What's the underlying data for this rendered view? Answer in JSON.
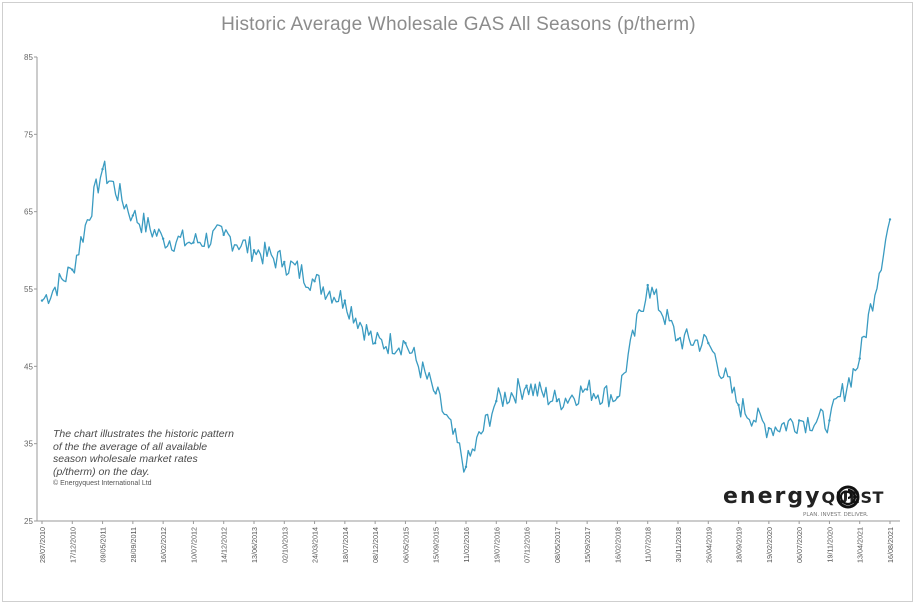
{
  "chart_data": {
    "type": "line",
    "title": "Historic Average Wholesale GAS All Seasons (p/therm)",
    "xlabel": "",
    "ylabel": "",
    "ylim": [
      25,
      85
    ],
    "y_ticks": [
      "85",
      "75",
      "65",
      "55",
      "45",
      "35",
      "25"
    ],
    "x_tick_labels": [
      "28/07/2010",
      "17/12/2010",
      "09/05/2011",
      "28/09/2011",
      "16/02/2012",
      "10/07/2012",
      "14/12/2012",
      "13/06/2013",
      "02/10/2013",
      "24/03/2014",
      "18/07/2014",
      "08/12/2014",
      "06/05/2015",
      "15/09/2015",
      "11/02/2016",
      "19/07/2016",
      "07/12/2016",
      "08/05/2017",
      "15/09/2017",
      "16/02/2018",
      "11/07/2018",
      "30/11/2018",
      "26/04/2019",
      "18/09/2019",
      "19/02/2020",
      "06/07/2020",
      "19/11/2020",
      "13/04/2021",
      "16/08/2021"
    ],
    "grid": false,
    "legend": "none",
    "series": [
      {
        "color": "#3a9bc1",
        "x": [
          "28/07/2010",
          "17/12/2010",
          "09/05/2011",
          "28/09/2011",
          "16/02/2012",
          "10/07/2012",
          "14/12/2012",
          "13/06/2013",
          "02/10/2013",
          "24/03/2014",
          "18/07/2014",
          "08/12/2014",
          "06/05/2015",
          "15/09/2015",
          "11/02/2016",
          "19/07/2016",
          "07/12/2016",
          "08/05/2017",
          "15/09/2017",
          "16/02/2018",
          "11/07/2018",
          "30/11/2018",
          "26/04/2019",
          "18/09/2019",
          "19/02/2020",
          "06/07/2020",
          "19/11/2020",
          "13/04/2021",
          "16/08/2021"
        ],
        "values": [
          53.5,
          57.5,
          70.5,
          64.5,
          61.5,
          61.0,
          62.0,
          60.0,
          58.5,
          56.0,
          53.5,
          48.0,
          48.0,
          41.5,
          32.0,
          40.5,
          42.5,
          40.5,
          42.0,
          41.0,
          55.5,
          48.5,
          48.0,
          40.0,
          37.0,
          38.0,
          38.0,
          46.0,
          64.0
        ]
      }
    ]
  },
  "annotation": {
    "lines": [
      "The chart illustrates the historic pattern",
      "of the the average of all available",
      "season wholesale market rates",
      "(p/therm) on the day."
    ],
    "copyright": "© Energyquest International Ltd"
  },
  "logo": {
    "word": "energy",
    "word2": "QUEST",
    "tagline": "PLAN. INVEST. DELIVER."
  }
}
